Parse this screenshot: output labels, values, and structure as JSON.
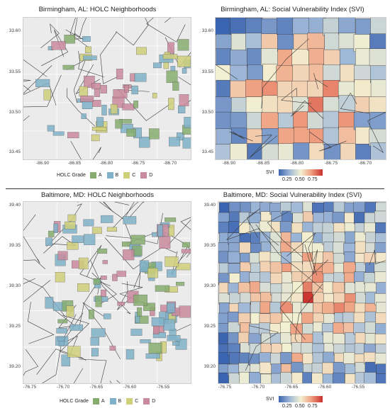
{
  "panels": {
    "bham_holc": {
      "title": "Birmingham, AL: HOLC Neighborhoods",
      "yticks": [
        "33.60",
        "33.55",
        "33.50",
        "33.45"
      ],
      "xticks": [
        "-86.90",
        "-86.85",
        "-86.80",
        "-86.75",
        "-86.70"
      ]
    },
    "bham_svi": {
      "title": "Birmingham, AL: Social Vulnerability Index (SVI)",
      "yticks": [
        "33.60",
        "33.55",
        "33.50",
        "33.45"
      ],
      "xticks": [
        "-86.90",
        "-86.85",
        "-86.80",
        "-86.75",
        "-86.70"
      ]
    },
    "balt_holc": {
      "title": "Baltimore, MD: HOLC Neighborhoods",
      "yticks": [
        "39.40",
        "39.35",
        "39.30",
        "39.25",
        "39.20"
      ],
      "xticks": [
        "-76.75",
        "-76.70",
        "-76.65",
        "-76.60",
        "-76.55"
      ]
    },
    "balt_svi": {
      "title": "Baltimore, MD: Social Vulnerability Index (SVI)",
      "yticks": [
        "39.40",
        "39.35",
        "39.30",
        "39.25",
        "39.20"
      ],
      "xticks": [
        "-76.75",
        "-76.70",
        "-76.65",
        "-76.60",
        "-76.55"
      ]
    }
  },
  "holc_legend": {
    "title": "HOLC Grade",
    "grades": [
      {
        "label": "A",
        "color": "#86ad6f"
      },
      {
        "label": "B",
        "color": "#7fb2c9"
      },
      {
        "label": "C",
        "color": "#cfcf7a"
      },
      {
        "label": "D",
        "color": "#c98a9e"
      }
    ]
  },
  "svi_legend": {
    "title": "SVI",
    "ticks": [
      "0.25",
      "0.50",
      "0.75"
    ]
  },
  "colors": {
    "panel_bg": "#ebebeb",
    "svi_low": "#3b64b0",
    "svi_mid": "#f3f0d2",
    "svi_high": "#c9302c"
  }
}
